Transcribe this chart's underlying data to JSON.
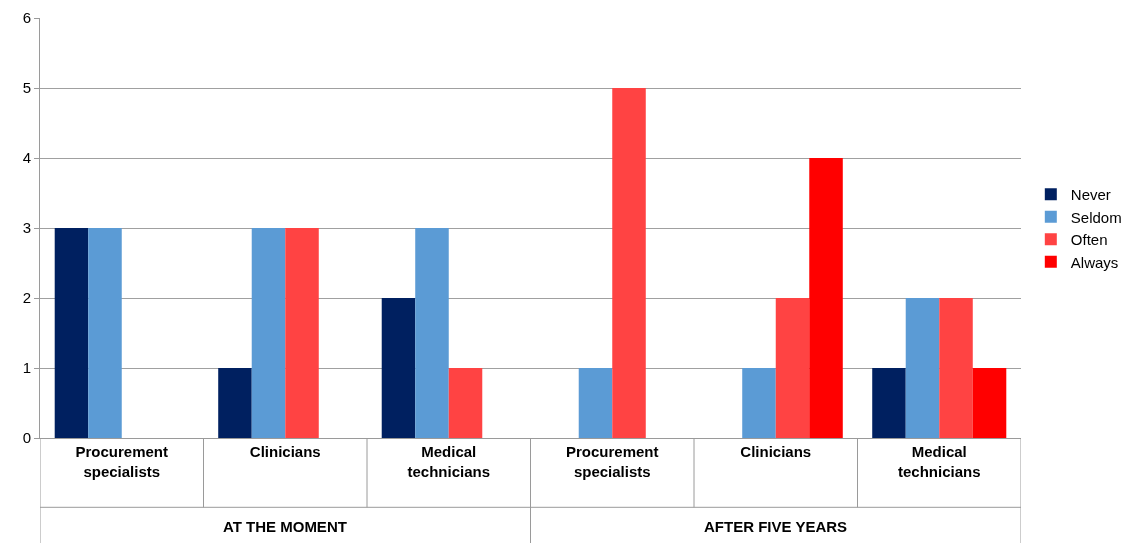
{
  "chart_data": {
    "type": "bar",
    "categories": [
      "Procurement specialists",
      "Clinicians",
      "Medical technicians",
      "Procurement specialists",
      "Clinicians",
      "Medical technicians"
    ],
    "series": [
      {
        "name": "Never",
        "color": "#002060",
        "values": [
          3,
          1,
          2,
          0,
          0,
          1
        ]
      },
      {
        "name": "Seldom",
        "color": "#5b9bd5",
        "values": [
          3,
          3,
          3,
          1,
          1,
          2
        ]
      },
      {
        "name": "Often",
        "color": "#ff4343",
        "values": [
          0,
          3,
          1,
          5,
          2,
          2
        ]
      },
      {
        "name": "Always",
        "color": "#ff0000",
        "values": [
          0,
          0,
          0,
          0,
          4,
          1
        ]
      }
    ],
    "annotations": [
      "AT THE MOMENT",
      "AFTER FIVE YEARS"
    ],
    "ylim": [
      0,
      6
    ],
    "yticks": [
      0,
      1,
      2,
      3,
      4,
      5,
      6
    ],
    "grid": "y",
    "legend": "right"
  }
}
